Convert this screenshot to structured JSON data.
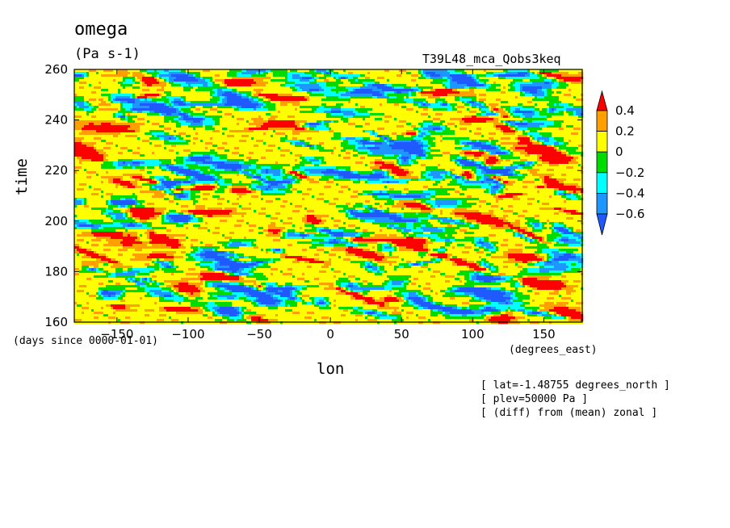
{
  "chart_data": {
    "type": "heatmap",
    "title": "omega",
    "units": "(Pa s-1)",
    "dataset": "T39L48_mca_Qobs3keq",
    "xlabel": "lon",
    "ylabel": "time",
    "x_units": "(degrees_east)",
    "y_units": "(days since 0000-01-01)",
    "xlim": [
      -180,
      177
    ],
    "ylim": [
      160,
      260
    ],
    "xticks": [
      -150,
      -100,
      -50,
      0,
      50,
      100,
      150
    ],
    "yticks": [
      160,
      180,
      200,
      220,
      240,
      260
    ],
    "colorbar": {
      "levels": [
        -0.6,
        -0.4,
        -0.2,
        0,
        0.2,
        0.4
      ],
      "labels": [
        "0.4",
        "0.2",
        "0",
        "-0.2",
        "-0.4",
        "-0.6"
      ],
      "colors": [
        "#1e5aff",
        "#1e96ff",
        "#00ffff",
        "#00dc00",
        "#ffff00",
        "#ffa000",
        "#ff0000"
      ]
    },
    "annotations": [
      "[ lat=-1.48755 degrees_north ]",
      "[ plev=50000 Pa ]",
      "[ (diff) from (mean) zonal ]"
    ]
  }
}
